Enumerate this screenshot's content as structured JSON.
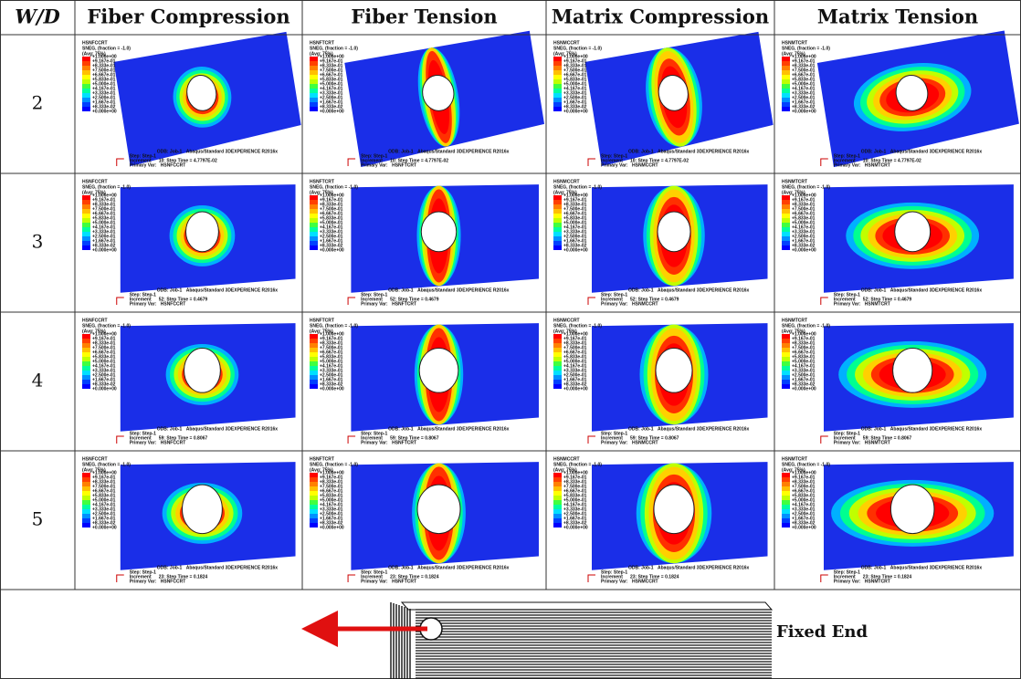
{
  "table": {
    "header": [
      "W/D",
      "Fiber Compression",
      "Fiber Tension",
      "Matrix Compression",
      "Matrix Tension"
    ],
    "rows": [
      {
        "wd": "2",
        "increment": "10: Step Time = 4.7797E-02"
      },
      {
        "wd": "3",
        "increment": "52: Step Time = 0.4679"
      },
      {
        "wd": "4",
        "increment": "59: Step Time = 0.8067"
      },
      {
        "wd": "5",
        "increment": "23: Step Time = 0.1824"
      }
    ]
  },
  "plot": {
    "variables": [
      "HSNFCCRT",
      "HSNFTCRT",
      "HSNMCCRT",
      "HSNMTCRT"
    ],
    "legend_lines": [
      "SNEG, (fraction = -1.0)",
      "(Avg: 75%)"
    ],
    "contour_levels": [
      "+1.000e+00",
      "+9.167e-01",
      "+8.333e-01",
      "+7.500e-01",
      "+6.667e-01",
      "+5.833e-01",
      "+5.000e-01",
      "+4.167e-01",
      "+3.333e-01",
      "+2.500e-01",
      "+1.667e-01",
      "+8.333e-02",
      "+0.000e+00"
    ],
    "odb": "ODB: Job-1",
    "solver": "Abaqus/Standard 3DEXPERIENCE R2016x",
    "step": "Step: Step-1",
    "increment_label": "Increment",
    "primary_var_label": "Primary Var:"
  },
  "diagram": {
    "label": "Fixed End"
  }
}
